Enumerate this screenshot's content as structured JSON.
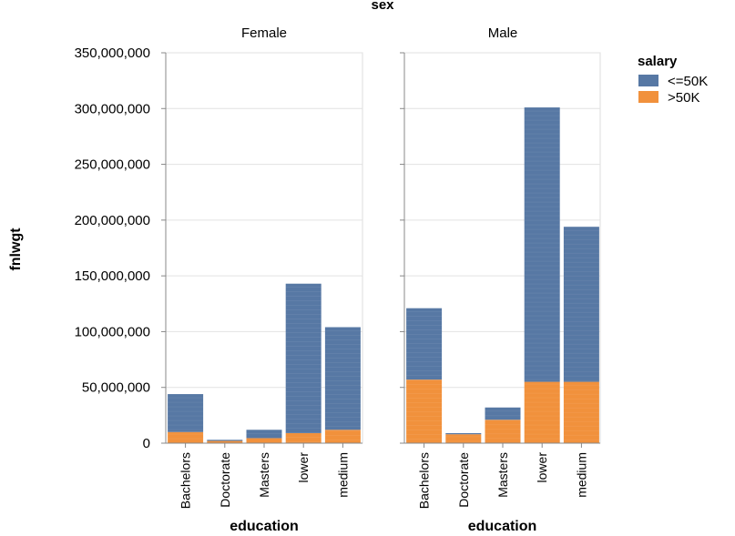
{
  "chart_data": {
    "type": "bar",
    "stacked": true,
    "column_facet_title": "sex",
    "facets": [
      "Female",
      "Male"
    ],
    "categories": [
      "Bachelors",
      "Doctorate",
      "Masters",
      "lower",
      "medium"
    ],
    "xlabel": "education",
    "ylabel": "fnlwgt",
    "ylim": [
      0,
      350000000
    ],
    "y_ticks": [
      0,
      50000000,
      100000000,
      150000000,
      200000000,
      250000000,
      300000000,
      350000000
    ],
    "y_tick_labels": [
      "0",
      "50,000,000",
      "100,000,000",
      "150,000,000",
      "200,000,000",
      "250,000,000",
      "300,000,000",
      "350,000,000"
    ],
    "grid": true,
    "legend": {
      "title": "salary",
      "position": "top-right",
      "entries": [
        {
          "name": "<=50K",
          "color": "#5778a4"
        },
        {
          "name": ">50K",
          "color": "#f1913c"
        }
      ]
    },
    "series": [
      {
        "name": ">50K",
        "color": "#f1913c",
        "values": {
          "Female": [
            10000000,
            2000000,
            4500000,
            9000000,
            12000000
          ],
          "Male": [
            57000000,
            8000000,
            21000000,
            55000000,
            55000000
          ]
        }
      },
      {
        "name": "<=50K",
        "color": "#5778a4",
        "values": {
          "Female": [
            34000000,
            1000000,
            7500000,
            134000000,
            92000000
          ],
          "Male": [
            64000000,
            1000000,
            11000000,
            246000000,
            139000000
          ]
        }
      }
    ]
  }
}
